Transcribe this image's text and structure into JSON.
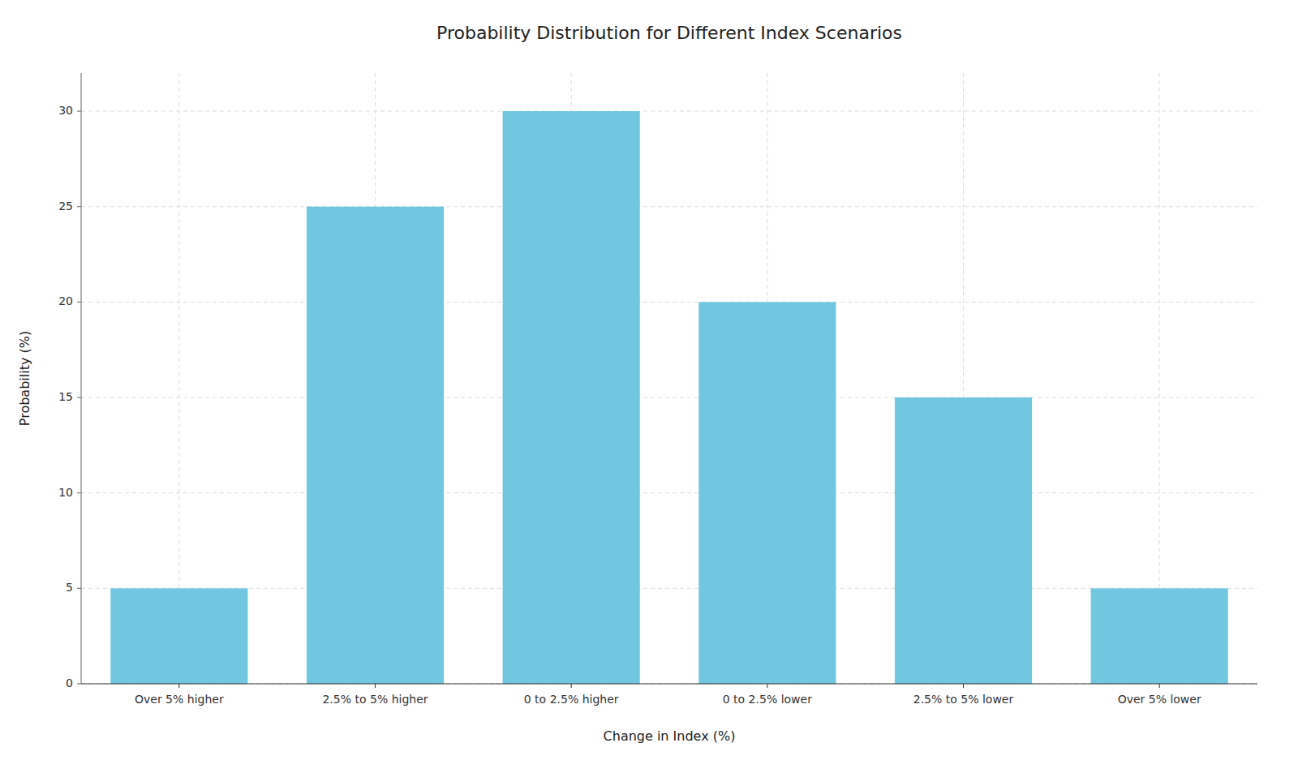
{
  "chart_data": {
    "type": "bar",
    "title": "Probability Distribution for Different Index Scenarios",
    "xlabel": "Change in Index (%)",
    "ylabel": "Probability (%)",
    "categories": [
      "Over 5% higher",
      "2.5% to 5% higher",
      "0 to 2.5% higher",
      "0 to 2.5% lower",
      "2.5% to 5% lower",
      "Over 5% lower"
    ],
    "values": [
      5,
      25,
      30,
      20,
      15,
      5
    ],
    "color": "#72c7e0",
    "ylim": [
      0,
      32
    ],
    "yticks": [
      0,
      5,
      10,
      15,
      20,
      25,
      30
    ],
    "grid": true
  }
}
